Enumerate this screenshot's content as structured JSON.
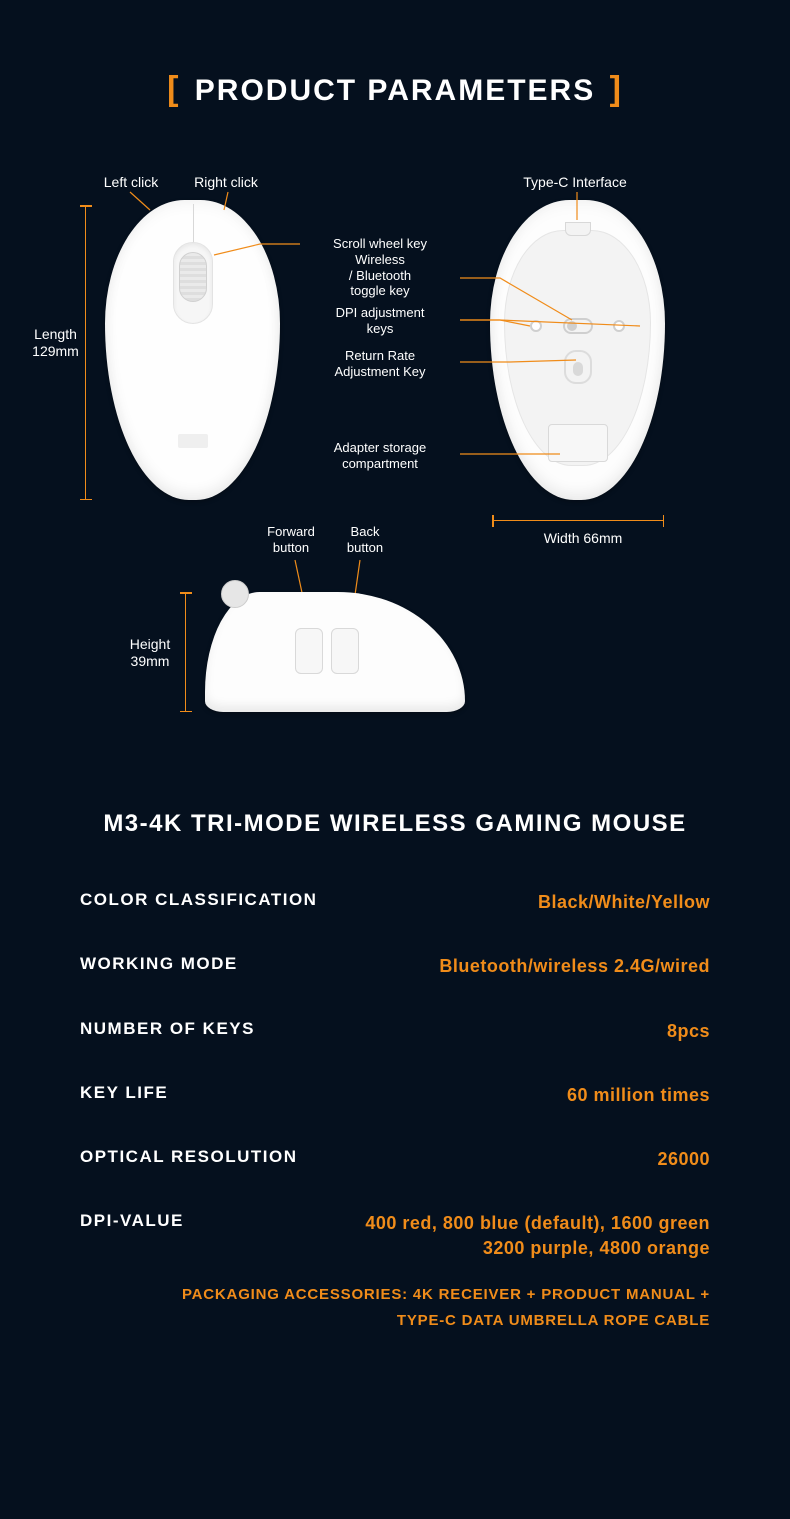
{
  "colors": {
    "background": "#05101e",
    "accent": "#f08c1a",
    "text": "#ffffff",
    "mouse_body": "#fefefe",
    "mouse_shadow": "rgba(0,0,0,0.08)"
  },
  "title": {
    "open_bracket": "[",
    "text": "PRODUCT PARAMETERS",
    "close_bracket": "]"
  },
  "diagram": {
    "top_view": {
      "left_click": "Left click",
      "right_click": "Right click"
    },
    "bottom_view": {
      "type_c": "Type-C Interface",
      "width": "Width 66mm"
    },
    "side_view": {
      "forward": "Forward\nbutton",
      "back": "Back\nbutton",
      "height": "Height\n39mm"
    },
    "center_labels": {
      "scroll": "Scroll wheel key",
      "wireless": "Wireless\n/ Bluetooth\ntoggle key",
      "dpi": "DPI adjustment\nkeys",
      "return_rate": "Return Rate\nAdjustment Key",
      "adapter": "Adapter storage\ncompartment"
    },
    "length": "Length\n129mm"
  },
  "subtitle": "M3-4K TRI-MODE WIRELESS GAMING MOUSE",
  "specs": [
    {
      "label": "COLOR CLASSIFICATION",
      "value": "Black/White/Yellow"
    },
    {
      "label": "WORKING MODE",
      "value": "Bluetooth/wireless 2.4G/wired"
    },
    {
      "label": "NUMBER OF KEYS",
      "value": "8pcs"
    },
    {
      "label": "KEY LIFE",
      "value": "60 million times"
    },
    {
      "label": "OPTICAL RESOLUTION",
      "value": "26000"
    },
    {
      "label": "DPI-VALUE",
      "value": "400 red, 800 blue (default), 1600 green\n3200 purple, 4800 orange"
    }
  ],
  "accessories": "PACKAGING ACCESSORIES: 4K RECEIVER + PRODUCT MANUAL +\nTYPE-C DATA UMBRELLA ROPE CABLE"
}
